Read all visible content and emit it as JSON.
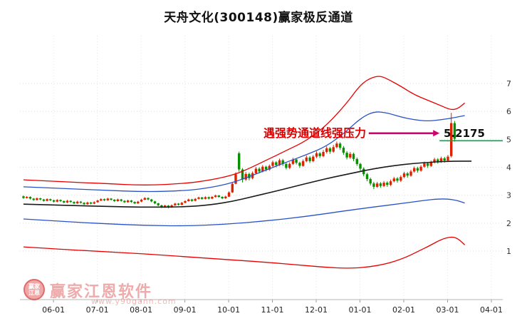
{
  "title": "天舟文化(300148)赢家极反通道",
  "annotation": {
    "text": "遇强势通道线强压力",
    "price_label": "5.2175",
    "text_color": "#dd0000",
    "arrow_color": "#d4006a"
  },
  "watermark": {
    "brand": "赢家江恩软件",
    "url": "www.y90gann.com",
    "logo_top": "赢家",
    "logo_bottom": "江恩"
  },
  "chart_data": {
    "type": "candlestick",
    "symbol": "天舟文化",
    "code": "300148",
    "up_color": "#dd2200",
    "down_color": "#089000",
    "grid_color": "#dcdcdc",
    "axis_text_color": "#333333",
    "y_ticks": [
      7,
      6,
      5,
      4,
      3,
      2,
      1
    ],
    "x_ticks": [
      {
        "label": "06-01",
        "i": 8.9
      },
      {
        "label": "07-01",
        "i": 21.9
      },
      {
        "label": "08-01",
        "i": 34.9
      },
      {
        "label": "09-01",
        "i": 47.9
      },
      {
        "label": "10-01",
        "i": 60.9
      },
      {
        "label": "11-01",
        "i": 73.9
      },
      {
        "label": "12-01",
        "i": 86.9
      },
      {
        "label": "01-01",
        "i": 99.9
      },
      {
        "label": "02-01",
        "i": 112.9
      },
      {
        "label": "03-01",
        "i": 125.9
      },
      {
        "label": "04-01",
        "i": 138.9
      }
    ],
    "candles_format": [
      "open",
      "close",
      "low",
      "high"
    ],
    "candles": [
      [
        2.96,
        2.9,
        2.87,
        2.99
      ],
      [
        2.9,
        2.94,
        2.88,
        2.97
      ],
      [
        2.94,
        2.88,
        2.85,
        2.96
      ],
      [
        2.88,
        2.83,
        2.8,
        2.9
      ],
      [
        2.83,
        2.89,
        2.81,
        2.92
      ],
      [
        2.89,
        2.85,
        2.82,
        2.91
      ],
      [
        2.85,
        2.8,
        2.77,
        2.87
      ],
      [
        2.8,
        2.86,
        2.78,
        2.89
      ],
      [
        2.86,
        2.82,
        2.79,
        2.88
      ],
      [
        2.82,
        2.77,
        2.74,
        2.84
      ],
      [
        2.77,
        2.83,
        2.75,
        2.86
      ],
      [
        2.83,
        2.79,
        2.76,
        2.85
      ],
      [
        2.79,
        2.74,
        2.71,
        2.81
      ],
      [
        2.74,
        2.8,
        2.72,
        2.83
      ],
      [
        2.8,
        2.76,
        2.73,
        2.82
      ],
      [
        2.76,
        2.71,
        2.68,
        2.78
      ],
      [
        2.71,
        2.77,
        2.69,
        2.8
      ],
      [
        2.77,
        2.73,
        2.7,
        2.79
      ],
      [
        2.73,
        2.68,
        2.65,
        2.75
      ],
      [
        2.68,
        2.74,
        2.66,
        2.77
      ],
      [
        2.74,
        2.7,
        2.67,
        2.76
      ],
      [
        2.7,
        2.75,
        2.68,
        2.78
      ],
      [
        2.75,
        2.81,
        2.73,
        2.84
      ],
      [
        2.81,
        2.86,
        2.79,
        2.89
      ],
      [
        2.86,
        2.82,
        2.79,
        2.88
      ],
      [
        2.82,
        2.88,
        2.8,
        2.91
      ],
      [
        2.88,
        2.84,
        2.81,
        2.9
      ],
      [
        2.84,
        2.79,
        2.76,
        2.86
      ],
      [
        2.79,
        2.85,
        2.77,
        2.88
      ],
      [
        2.85,
        2.8,
        2.77,
        2.87
      ],
      [
        2.8,
        2.75,
        2.72,
        2.82
      ],
      [
        2.75,
        2.81,
        2.73,
        2.84
      ],
      [
        2.81,
        2.76,
        2.73,
        2.83
      ],
      [
        2.76,
        2.71,
        2.68,
        2.78
      ],
      [
        2.71,
        2.77,
        2.69,
        2.8
      ],
      [
        2.77,
        2.84,
        2.75,
        2.87
      ],
      [
        2.84,
        2.9,
        2.82,
        2.93
      ],
      [
        2.9,
        2.85,
        2.82,
        2.92
      ],
      [
        2.85,
        2.78,
        2.75,
        2.87
      ],
      [
        2.78,
        2.71,
        2.68,
        2.8
      ],
      [
        2.71,
        2.64,
        2.61,
        2.73
      ],
      [
        2.64,
        2.58,
        2.54,
        2.66
      ],
      [
        2.58,
        2.63,
        2.55,
        2.66
      ],
      [
        2.63,
        2.57,
        2.53,
        2.65
      ],
      [
        2.57,
        2.64,
        2.55,
        2.67
      ],
      [
        2.64,
        2.7,
        2.62,
        2.73
      ],
      [
        2.7,
        2.66,
        2.63,
        2.72
      ],
      [
        2.66,
        2.73,
        2.64,
        2.76
      ],
      [
        2.73,
        2.79,
        2.71,
        2.82
      ],
      [
        2.79,
        2.85,
        2.77,
        2.88
      ],
      [
        2.85,
        2.8,
        2.77,
        2.87
      ],
      [
        2.8,
        2.87,
        2.78,
        2.9
      ],
      [
        2.87,
        2.92,
        2.85,
        2.95
      ],
      [
        2.92,
        2.87,
        2.84,
        2.94
      ],
      [
        2.87,
        2.93,
        2.85,
        2.96
      ],
      [
        2.93,
        2.88,
        2.85,
        2.95
      ],
      [
        2.88,
        2.94,
        2.86,
        2.97
      ],
      [
        2.94,
        2.99,
        2.92,
        3.02
      ],
      [
        2.99,
        2.94,
        2.91,
        3.01
      ],
      [
        2.94,
        2.89,
        2.86,
        2.96
      ],
      [
        2.89,
        2.95,
        2.87,
        2.98
      ],
      [
        2.95,
        3.1,
        2.93,
        3.14
      ],
      [
        3.1,
        3.41,
        3.08,
        3.45
      ],
      [
        3.41,
        3.75,
        3.39,
        3.82
      ],
      [
        4.5,
        3.92,
        3.84,
        4.56
      ],
      [
        3.92,
        3.56,
        3.46,
        3.97
      ],
      [
        3.56,
        3.76,
        3.51,
        3.83
      ],
      [
        3.76,
        3.61,
        3.53,
        3.81
      ],
      [
        3.61,
        3.79,
        3.57,
        3.85
      ],
      [
        3.79,
        3.95,
        3.75,
        4.01
      ],
      [
        3.95,
        3.85,
        3.78,
        4.0
      ],
      [
        3.85,
        4.02,
        3.82,
        4.08
      ],
      [
        4.02,
        3.92,
        3.85,
        4.06
      ],
      [
        3.92,
        4.05,
        3.88,
        4.1
      ],
      [
        4.05,
        4.18,
        4.0,
        4.24
      ],
      [
        4.18,
        4.08,
        4.0,
        4.22
      ],
      [
        4.08,
        4.25,
        4.05,
        4.31
      ],
      [
        4.25,
        4.12,
        4.05,
        4.3
      ],
      [
        4.12,
        3.98,
        3.92,
        4.16
      ],
      [
        3.98,
        4.12,
        3.94,
        4.18
      ],
      [
        4.12,
        4.28,
        4.08,
        4.34
      ],
      [
        4.28,
        4.16,
        4.1,
        4.32
      ],
      [
        4.16,
        4.05,
        3.98,
        4.2
      ],
      [
        4.05,
        4.22,
        4.02,
        4.28
      ],
      [
        4.22,
        4.35,
        4.18,
        4.42
      ],
      [
        4.35,
        4.22,
        4.15,
        4.4
      ],
      [
        4.22,
        4.38,
        4.18,
        4.44
      ],
      [
        4.38,
        4.5,
        4.33,
        4.57
      ],
      [
        4.5,
        4.4,
        4.33,
        4.55
      ],
      [
        4.4,
        4.55,
        4.36,
        4.62
      ],
      [
        4.55,
        4.68,
        4.5,
        4.75
      ],
      [
        4.68,
        4.56,
        4.48,
        4.73
      ],
      [
        4.56,
        4.72,
        4.52,
        4.8
      ],
      [
        4.72,
        4.85,
        4.68,
        4.92
      ],
      [
        4.85,
        4.7,
        4.62,
        4.9
      ],
      [
        4.7,
        4.52,
        4.45,
        4.76
      ],
      [
        4.52,
        4.35,
        4.28,
        4.58
      ],
      [
        4.35,
        4.48,
        4.3,
        4.55
      ],
      [
        4.48,
        4.3,
        4.22,
        4.52
      ],
      [
        4.3,
        4.12,
        4.05,
        4.35
      ],
      [
        4.12,
        3.95,
        3.88,
        4.16
      ],
      [
        3.95,
        3.75,
        3.68,
        4.0
      ],
      [
        3.75,
        3.58,
        3.5,
        3.8
      ],
      [
        3.58,
        3.42,
        3.35,
        3.63
      ],
      [
        3.42,
        3.3,
        3.22,
        3.48
      ],
      [
        3.3,
        3.42,
        3.26,
        3.48
      ],
      [
        3.42,
        3.33,
        3.27,
        3.47
      ],
      [
        3.33,
        3.45,
        3.29,
        3.51
      ],
      [
        3.45,
        3.37,
        3.3,
        3.5
      ],
      [
        3.37,
        3.5,
        3.33,
        3.56
      ],
      [
        3.5,
        3.6,
        3.46,
        3.66
      ],
      [
        3.6,
        3.52,
        3.45,
        3.65
      ],
      [
        3.52,
        3.65,
        3.48,
        3.71
      ],
      [
        3.65,
        3.78,
        3.61,
        3.84
      ],
      [
        3.78,
        3.7,
        3.63,
        3.83
      ],
      [
        3.7,
        3.85,
        3.66,
        3.91
      ],
      [
        3.85,
        3.97,
        3.81,
        4.03
      ],
      [
        3.97,
        3.88,
        3.81,
        4.02
      ],
      [
        3.88,
        4.02,
        3.84,
        4.08
      ],
      [
        4.02,
        4.14,
        3.98,
        4.2
      ],
      [
        4.14,
        4.05,
        3.98,
        4.19
      ],
      [
        4.05,
        4.18,
        4.01,
        4.24
      ],
      [
        4.18,
        4.28,
        4.14,
        4.34
      ],
      [
        4.28,
        4.2,
        4.13,
        4.33
      ],
      [
        4.2,
        4.32,
        4.16,
        4.38
      ],
      [
        4.32,
        4.24,
        4.17,
        4.37
      ],
      [
        4.24,
        4.38,
        4.2,
        4.44
      ],
      [
        4.4,
        5.58,
        4.35,
        5.95
      ],
      [
        5.58,
        5.02,
        4.92,
        5.66
      ]
    ],
    "lines": [
      {
        "name": "outer-line-upper",
        "color": "#e60000",
        "width": 1.3,
        "points": [
          [
            0,
            3.55
          ],
          [
            12,
            3.48
          ],
          [
            24,
            3.42
          ],
          [
            36,
            3.35
          ],
          [
            48,
            3.42
          ],
          [
            56,
            3.55
          ],
          [
            62,
            3.72
          ],
          [
            66,
            3.9
          ],
          [
            72,
            4.25
          ],
          [
            78,
            4.6
          ],
          [
            84,
            4.95
          ],
          [
            90,
            5.5
          ],
          [
            96,
            6.3
          ],
          [
            100,
            6.95
          ],
          [
            103,
            7.2
          ],
          [
            106,
            7.28
          ],
          [
            109,
            7.1
          ],
          [
            112,
            6.9
          ],
          [
            116,
            6.6
          ],
          [
            120,
            6.4
          ],
          [
            124,
            6.2
          ],
          [
            127,
            6.05
          ],
          [
            129,
            6.1
          ],
          [
            131,
            6.3
          ]
        ]
      },
      {
        "name": "inner-line-upper",
        "color": "#2a52c8",
        "width": 1.3,
        "points": [
          [
            0,
            3.3
          ],
          [
            12,
            3.24
          ],
          [
            24,
            3.18
          ],
          [
            36,
            3.12
          ],
          [
            48,
            3.16
          ],
          [
            56,
            3.28
          ],
          [
            62,
            3.45
          ],
          [
            66,
            3.62
          ],
          [
            72,
            3.9
          ],
          [
            78,
            4.18
          ],
          [
            84,
            4.45
          ],
          [
            90,
            4.75
          ],
          [
            96,
            5.3
          ],
          [
            100,
            5.75
          ],
          [
            104,
            6.0
          ],
          [
            108,
            5.95
          ],
          [
            112,
            5.8
          ],
          [
            116,
            5.7
          ],
          [
            120,
            5.65
          ],
          [
            124,
            5.7
          ],
          [
            128,
            5.78
          ],
          [
            131,
            5.85
          ]
        ]
      },
      {
        "name": "middle-line",
        "color": "#1a1a1a",
        "width": 1.6,
        "points": [
          [
            0,
            2.68
          ],
          [
            12,
            2.64
          ],
          [
            24,
            2.6
          ],
          [
            36,
            2.57
          ],
          [
            48,
            2.58
          ],
          [
            56,
            2.66
          ],
          [
            62,
            2.78
          ],
          [
            68,
            2.95
          ],
          [
            74,
            3.12
          ],
          [
            80,
            3.3
          ],
          [
            86,
            3.48
          ],
          [
            92,
            3.65
          ],
          [
            98,
            3.8
          ],
          [
            104,
            3.95
          ],
          [
            110,
            4.06
          ],
          [
            116,
            4.14
          ],
          [
            122,
            4.19
          ],
          [
            127,
            4.22
          ],
          [
            133,
            4.22
          ]
        ]
      },
      {
        "name": "inner-line-lower",
        "color": "#2a52c8",
        "width": 1.3,
        "points": [
          [
            0,
            2.15
          ],
          [
            12,
            2.06
          ],
          [
            24,
            1.98
          ],
          [
            36,
            1.92
          ],
          [
            48,
            1.9
          ],
          [
            60,
            1.96
          ],
          [
            72,
            2.08
          ],
          [
            84,
            2.24
          ],
          [
            96,
            2.45
          ],
          [
            104,
            2.58
          ],
          [
            112,
            2.7
          ],
          [
            118,
            2.8
          ],
          [
            124,
            2.88
          ],
          [
            128,
            2.84
          ],
          [
            131,
            2.72
          ]
        ]
      },
      {
        "name": "outer-line-lower",
        "color": "#e60000",
        "width": 1.3,
        "points": [
          [
            0,
            1.15
          ],
          [
            12,
            1.06
          ],
          [
            24,
            0.98
          ],
          [
            36,
            0.9
          ],
          [
            48,
            0.8
          ],
          [
            60,
            0.7
          ],
          [
            72,
            0.6
          ],
          [
            82,
            0.5
          ],
          [
            90,
            0.42
          ],
          [
            96,
            0.38
          ],
          [
            102,
            0.42
          ],
          [
            108,
            0.55
          ],
          [
            113,
            0.75
          ],
          [
            117,
            0.98
          ],
          [
            121,
            1.22
          ],
          [
            124,
            1.42
          ],
          [
            127,
            1.52
          ],
          [
            129,
            1.45
          ],
          [
            131,
            1.22
          ]
        ]
      }
    ],
    "resistance_line": {
      "value": 4.95,
      "from_i": 123.5,
      "color": "#00a84a"
    },
    "arrow": {
      "value": 5.2175,
      "from_i": 102.5,
      "to_i": 123.5,
      "color": "#d4006a"
    },
    "last_price": 5.2175
  }
}
